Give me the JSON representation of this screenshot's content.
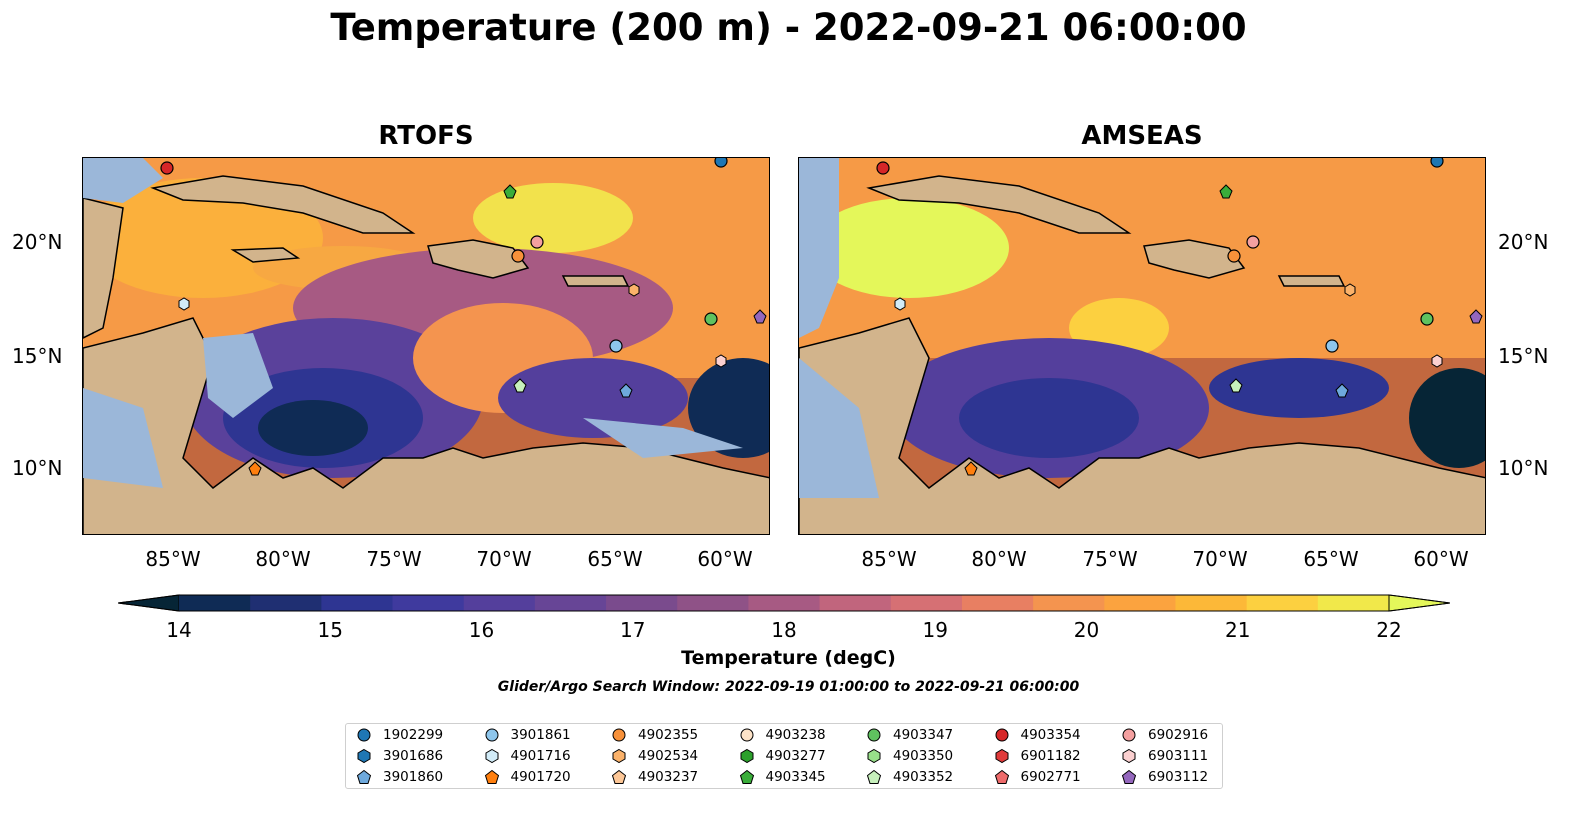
{
  "title": "Temperature (200 m) - 2022-09-21 06:00:00",
  "panels": [
    {
      "title": "RTOFS"
    },
    {
      "title": "AMSEAS"
    }
  ],
  "lon_ticks": [
    "85°W",
    "80°W",
    "75°W",
    "70°W",
    "65°W",
    "60°W"
  ],
  "lat_ticks": [
    "20°N",
    "15°N",
    "10°N"
  ],
  "colorbar": {
    "label": "Temperature (degC)",
    "ticks": [
      "14",
      "15",
      "16",
      "17",
      "18",
      "19",
      "20",
      "21",
      "22"
    ],
    "min": 14,
    "max": 22,
    "step": 0.5,
    "colors": [
      "#062536",
      "#0f2b55",
      "#1f2f72",
      "#2e3592",
      "#3f3a9e",
      "#543f9c",
      "#674596",
      "#7a4b8d",
      "#8f5287",
      "#a75a83",
      "#c1657d",
      "#d67074",
      "#e87f62",
      "#f4944f",
      "#fba33f",
      "#fcb838",
      "#fcd040",
      "#f1e84a",
      "#e4f75a"
    ]
  },
  "search_window": "Glider/Argo Search Window: 2022-09-19 01:00:00 to 2022-09-21 06:00:00",
  "legend": [
    {
      "id": "1902299",
      "shape": "circle",
      "color": "#1f77b4"
    },
    {
      "id": "3901686",
      "shape": "hexagon",
      "color": "#1f77b4"
    },
    {
      "id": "3901860",
      "shape": "pentagon",
      "color": "#6ea9dc"
    },
    {
      "id": "3901861",
      "shape": "circle",
      "color": "#8ec6ec"
    },
    {
      "id": "4901716",
      "shape": "hexagon",
      "color": "#d2ecf8"
    },
    {
      "id": "4901720",
      "shape": "pentagon",
      "color": "#ff7f0e"
    },
    {
      "id": "4902355",
      "shape": "circle",
      "color": "#f7913a"
    },
    {
      "id": "4902534",
      "shape": "hexagon",
      "color": "#fbb26a"
    },
    {
      "id": "4903237",
      "shape": "pentagon",
      "color": "#fdc797"
    },
    {
      "id": "4903238",
      "shape": "circle",
      "color": "#fde3c8"
    },
    {
      "id": "4903277",
      "shape": "hexagon",
      "color": "#2ca02c"
    },
    {
      "id": "4903345",
      "shape": "pentagon",
      "color": "#3aad3a"
    },
    {
      "id": "4903347",
      "shape": "circle",
      "color": "#5fc25f"
    },
    {
      "id": "4903350",
      "shape": "hexagon",
      "color": "#98df8a"
    },
    {
      "id": "4903352",
      "shape": "pentagon",
      "color": "#c7f0bc"
    },
    {
      "id": "4903354",
      "shape": "circle",
      "color": "#d62728"
    },
    {
      "id": "6901182",
      "shape": "hexagon",
      "color": "#e03a3a"
    },
    {
      "id": "6902771",
      "shape": "pentagon",
      "color": "#ee6b6b"
    },
    {
      "id": "6902916",
      "shape": "circle",
      "color": "#f4a0a0"
    },
    {
      "id": "6903111",
      "shape": "hexagon",
      "color": "#fbd0d0"
    },
    {
      "id": "6903112",
      "shape": "pentagon",
      "color": "#9467bd"
    }
  ]
}
